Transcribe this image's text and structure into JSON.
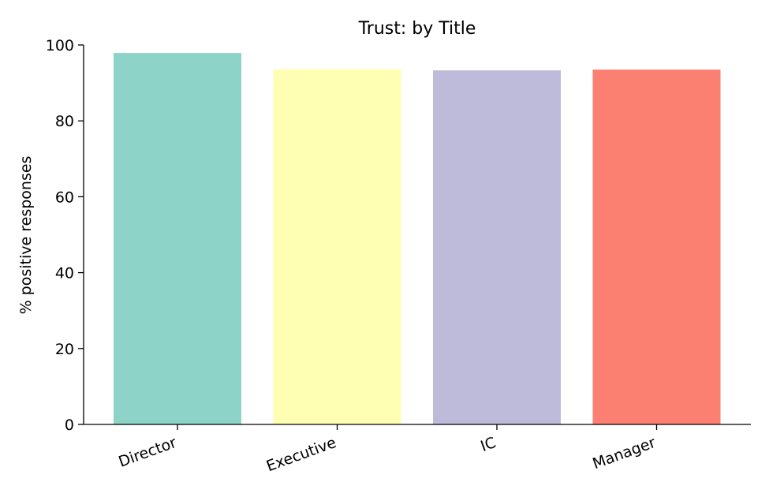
{
  "chart_data": {
    "type": "bar",
    "title": "Trust: by Title",
    "xlabel": "",
    "ylabel": "% positive responses",
    "categories": [
      "Director",
      "Executive",
      "IC",
      "Manager"
    ],
    "values": [
      97.9,
      93.6,
      93.3,
      93.5
    ],
    "colors": [
      "#8dd3c7",
      "#ffffb3",
      "#bebada",
      "#fb8072"
    ],
    "ylim": [
      0,
      100
    ],
    "yticks": [
      0,
      20,
      40,
      60,
      80,
      100
    ],
    "grid": false,
    "legend": "none"
  }
}
